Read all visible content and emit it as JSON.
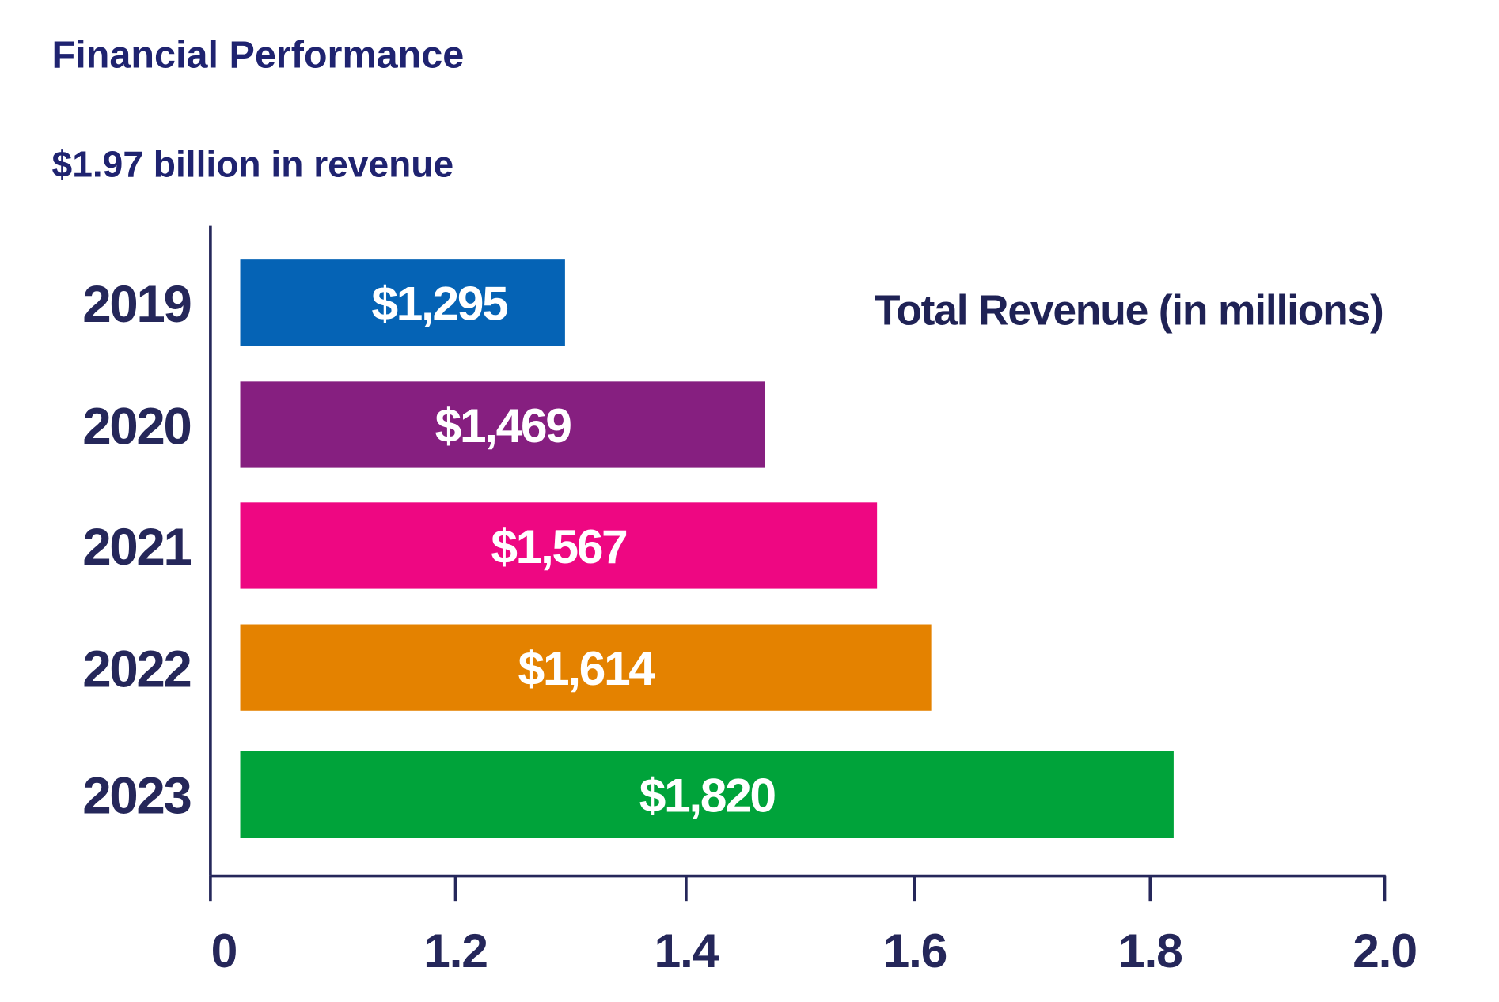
{
  "chart_data": {
    "type": "bar",
    "orientation": "horizontal",
    "title": "Financial Performance",
    "subtitle": "$1.97 billion in revenue",
    "legend_label": "Total Revenue  (in millions)",
    "legend_placement": "top-right",
    "categories": [
      "2019",
      "2020",
      "2021",
      "2022",
      "2023"
    ],
    "values": [
      1295,
      1469,
      1567,
      1614,
      1820
    ],
    "value_labels": [
      "$1,295",
      "$1,469",
      "$1,567",
      "$1,614",
      "$1,820"
    ],
    "bar_colors": [
      "#0563b5",
      "#861f80",
      "#ee0782",
      "#e48200",
      "#00a33a"
    ],
    "xticks": [
      0,
      1.2,
      1.4,
      1.6,
      1.8,
      2.0
    ],
    "xtick_labels": [
      "0",
      "1.2",
      "1.4",
      "1.6",
      "1.8",
      "2.0"
    ],
    "xlabel": "",
    "ylabel": "",
    "xlim": [
      0,
      2.0
    ],
    "grid": false,
    "text_color": "#1f2370"
  }
}
